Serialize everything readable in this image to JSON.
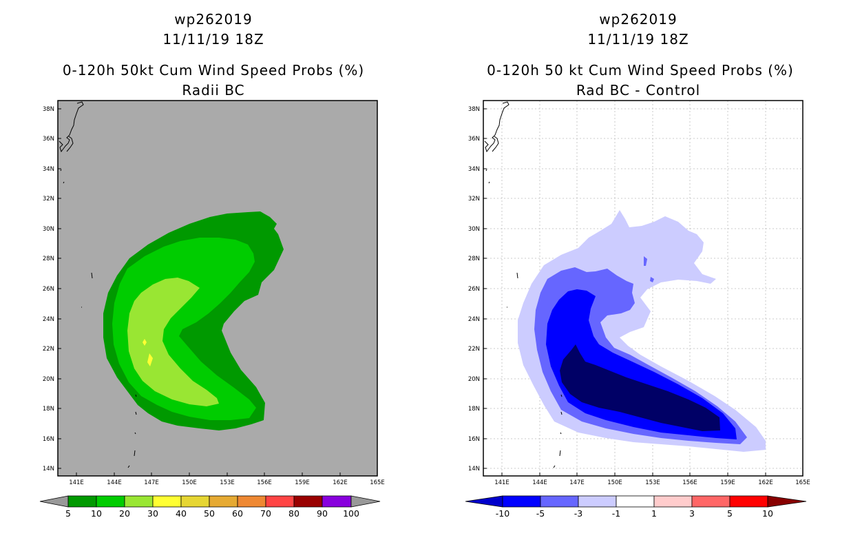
{
  "left_panel": {
    "storm_id": "wp262019",
    "datetime": "11/11/19 18Z",
    "title": "0-120h 50kt Cum Wind Speed Probs (%)",
    "subtitle": "Radii BC",
    "background_color": "#aaaaaa",
    "colorbar": {
      "labels": [
        "5",
        "10",
        "20",
        "30",
        "40",
        "50",
        "60",
        "70",
        "80",
        "90",
        "100"
      ],
      "colors": [
        "#009900",
        "#00cc00",
        "#99e633",
        "#ffff33",
        "#e6d633",
        "#e6aa33",
        "#ee8833",
        "#ff4444",
        "#990000",
        "#8800dd"
      ],
      "end_color": "#999999"
    },
    "regions": [
      {
        "level": "5",
        "color": "#009900"
      },
      {
        "level": "10",
        "color": "#00cc00"
      },
      {
        "level": "20",
        "color": "#99e633"
      },
      {
        "level": "30",
        "color": "#ffff33"
      }
    ]
  },
  "right_panel": {
    "storm_id": "wp262019",
    "datetime": "11/11/19 18Z",
    "title": "0-120h 50 kt Cum Wind Speed Probs (%)",
    "subtitle": "Rad BC - Control",
    "background_color": "#ffffff",
    "colorbar": {
      "labels": [
        "-10",
        "-5",
        "-3",
        "-1",
        "1",
        "3",
        "5",
        "10"
      ],
      "colors": [
        "#0000cc",
        "#0000ff",
        "#6666ff",
        "#ccccff",
        "#ffffff",
        "#ffcccc",
        "#ff6666",
        "#ff0000",
        "#880000"
      ],
      "low_end_color": "#0000cc",
      "high_end_color": "#880000"
    },
    "regions": [
      {
        "level": "-1",
        "color": "#ccccff"
      },
      {
        "level": "-3",
        "color": "#6666ff"
      },
      {
        "level": "-5",
        "color": "#0000ff"
      },
      {
        "level": "-10",
        "color": "#000066"
      }
    ]
  },
  "map": {
    "lat_labels": [
      "38N",
      "36N",
      "34N",
      "32N",
      "30N",
      "28N",
      "26N",
      "24N",
      "22N",
      "20N",
      "18N",
      "16N",
      "14N"
    ],
    "lon_labels": [
      "141E",
      "144E",
      "147E",
      "150E",
      "153E",
      "156E",
      "159E",
      "162E",
      "165E"
    ]
  }
}
